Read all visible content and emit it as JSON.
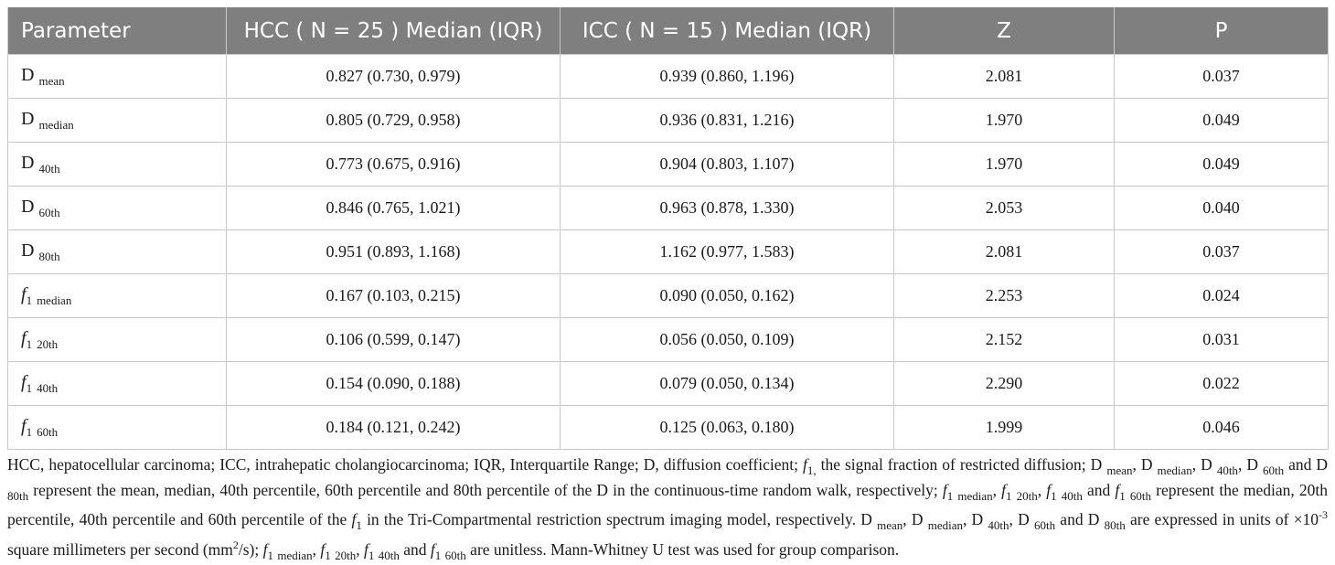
{
  "header": {
    "parameter": "Parameter",
    "hcc": "HCC ( N = 25 ) Median (IQR)",
    "icc": "ICC ( N = 15 ) Median (IQR)",
    "z": "Z",
    "p": "P"
  },
  "rows": [
    {
      "base": "D",
      "sub": "mean",
      "hcc": "0.827 (0.730, 0.979)",
      "icc": "0.939 (0.860, 1.196)",
      "z": "2.081",
      "p": "0.037"
    },
    {
      "base": "D",
      "sub": "median",
      "hcc": "0.805 (0.729, 0.958)",
      "icc": "0.936 (0.831, 1.216)",
      "z": "1.970",
      "p": "0.049"
    },
    {
      "base": "D",
      "sub": "40th",
      "hcc": "0.773 (0.675, 0.916)",
      "icc": "0.904 (0.803, 1.107)",
      "z": "1.970",
      "p": "0.049"
    },
    {
      "base": "D",
      "sub": "60th",
      "hcc": "0.846 (0.765, 1.021)",
      "icc": "0.963 (0.878, 1.330)",
      "z": "2.053",
      "p": "0.040"
    },
    {
      "base": "D",
      "sub": "80th",
      "hcc": "0.951 (0.893, 1.168)",
      "icc": "1.162 (0.977, 1.583)",
      "z": "2.081",
      "p": "0.037"
    },
    {
      "base": "f",
      "num": "1",
      "sub": "median",
      "hcc": "0.167 (0.103, 0.215)",
      "icc": "0.090 (0.050, 0.162)",
      "z": "2.253",
      "p": "0.024"
    },
    {
      "base": "f",
      "num": "1",
      "sub": "20th",
      "hcc": "0.106 (0.599, 0.147)",
      "icc": "0.056 (0.050, 0.109)",
      "z": "2.152",
      "p": "0.031"
    },
    {
      "base": "f",
      "num": "1",
      "sub": "40th",
      "hcc": "0.154 (0.090, 0.188)",
      "icc": "0.079 (0.050, 0.134)",
      "z": "2.290",
      "p": "0.022"
    },
    {
      "base": "f",
      "num": "1",
      "sub": "60th",
      "hcc": "0.184 (0.121, 0.242)",
      "icc": "0.125 (0.063, 0.180)",
      "z": "1.999",
      "p": "0.046"
    }
  ],
  "footnote": {
    "t1": "HCC, hepatocellular carcinoma; ICC, intrahepatic cholangiocarcinoma; IQR, Interquartile Range; D, diffusion coefficient; ",
    "f": "f",
    "one": "1",
    "comma": ",",
    "t2": " the signal fraction of restricted diffusion; D ",
    "s_mean": "mean",
    "t3": ", D ",
    "s_median": "median",
    "t4": ", D ",
    "s_40": "40th",
    "t5": ", D ",
    "s_60": "60th",
    "t6": " and D ",
    "s_80": "80th",
    "t7": " represent the mean, median, 40th percentile, 60th percentile and 80th percentile of the D in the continuous-time random walk, respectively; ",
    "t8": ", ",
    "t9": ", ",
    "t10": " and ",
    "s_20": "20th",
    "t11": " represent the median, 20th percentile, 40th percentile and 60th percentile of the ",
    "t12": " in the Tri-Compartmental restriction spectrum imaging model, respectively. D ",
    "t13": ", D ",
    "t14": ", D ",
    "t15": ", D ",
    "t16": " and D ",
    "t17": " are expressed in units of ×10",
    "sup_exp": "-3",
    "t18": " square millimeters per second (mm",
    "sup_2": "2",
    "t19": "/s); ",
    "t20": ", ",
    "t21": ", ",
    "t22": " and ",
    "t23": " are unitless. Mann-Whitney U test was used for group comparison."
  }
}
